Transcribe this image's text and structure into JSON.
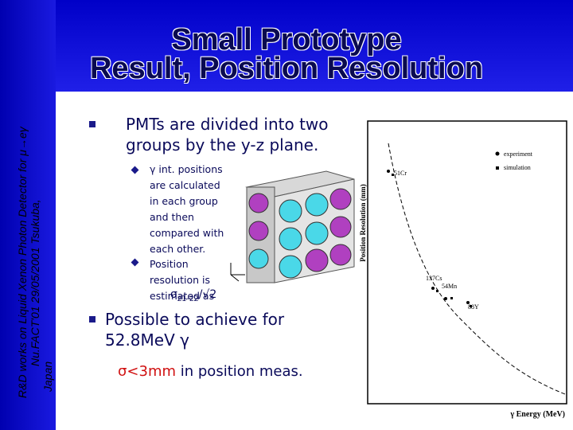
{
  "sidebar": {
    "lines": [
      "R&D works on Liquid Xenon Photon Detector for μ→eγ",
      "Nu.FACT'01   29/05/2001 Tsukuba,",
      "Japan"
    ]
  },
  "title": {
    "lines": [
      "Small Prototype",
      "Result, Position Resolution"
    ]
  },
  "bullets": [
    {
      "text": "PMTs are divided into two groups by the y-z plane.",
      "subitems": [
        "γ int. positions are calculated in each group and then compared with each other.",
        "Position resolution is estimated as"
      ],
      "formula": {
        "symbol": "σ",
        "subscript": "z1-z2",
        "divisor": "/√2"
      }
    },
    {
      "text": "Possible to achieve for 52.8MeV γ",
      "note": {
        "highlight": "σ<3mm",
        "rest": "in position meas."
      }
    }
  ],
  "figure": {
    "y_label": "Position Resolution (mm)",
    "x_label": "γ Energy (MeV)",
    "legend": [
      "experiment",
      "simulation"
    ],
    "point_labels": [
      "51Cr",
      "137Cs",
      "54Mn",
      "88Y"
    ]
  }
}
